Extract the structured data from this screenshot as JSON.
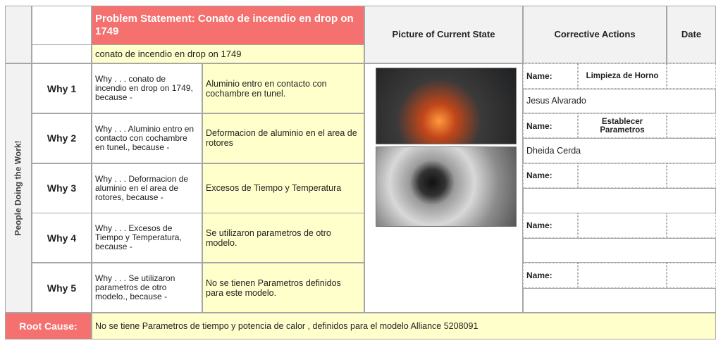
{
  "header": {
    "problem_statement": "Problem Statement: Conato de incendio en drop on 1749",
    "problem_detail": "conato de incendio en drop on 1749",
    "picture_header": "Picture of Current State",
    "actions_header": "Corrective Actions",
    "date_header": "Date",
    "side_label": "People Doing the Work!"
  },
  "whys": [
    {
      "label": "Why 1",
      "question": "Why . . . conato de incendio en drop on 1749, because -",
      "answer": "Aluminio entro en contacto con cochambre en tunel.",
      "name_label": "Name:",
      "action": "Limpieza de Horno",
      "owner": "Jesus Alvarado"
    },
    {
      "label": "Why 2",
      "question": "Why . . . Aluminio entro en contacto con cochambre en tunel., because -",
      "answer": "Deformacion de aluminio en el area de rotores",
      "name_label": "Name:",
      "action": "Establecer Parametros",
      "owner": "Dheida Cerda"
    },
    {
      "label": "Why 3",
      "question": "Why . . . Deformacion de aluminio en el area de rotores, because -",
      "answer": "Excesos de Tiempo y Temperatura",
      "name_label": "Name:"
    },
    {
      "label": "Why 4",
      "question": "Why . . . Excesos de Tiempo y Temperatura, because -",
      "answer": "Se utilizaron parametros de otro modelo.",
      "name_label": "Name:"
    },
    {
      "label": "Why 5",
      "question": "Why . . . Se utilizaron parametros de otro modelo., because -",
      "answer": "No se tienen Parametros definidos para este modelo.",
      "name_label": "Name:"
    }
  ],
  "root_cause": {
    "label": "Root Cause:",
    "text": "No se tiene Parametros de tiempo y potencia de calor , definidos para el modelo Alliance 5208091"
  }
}
